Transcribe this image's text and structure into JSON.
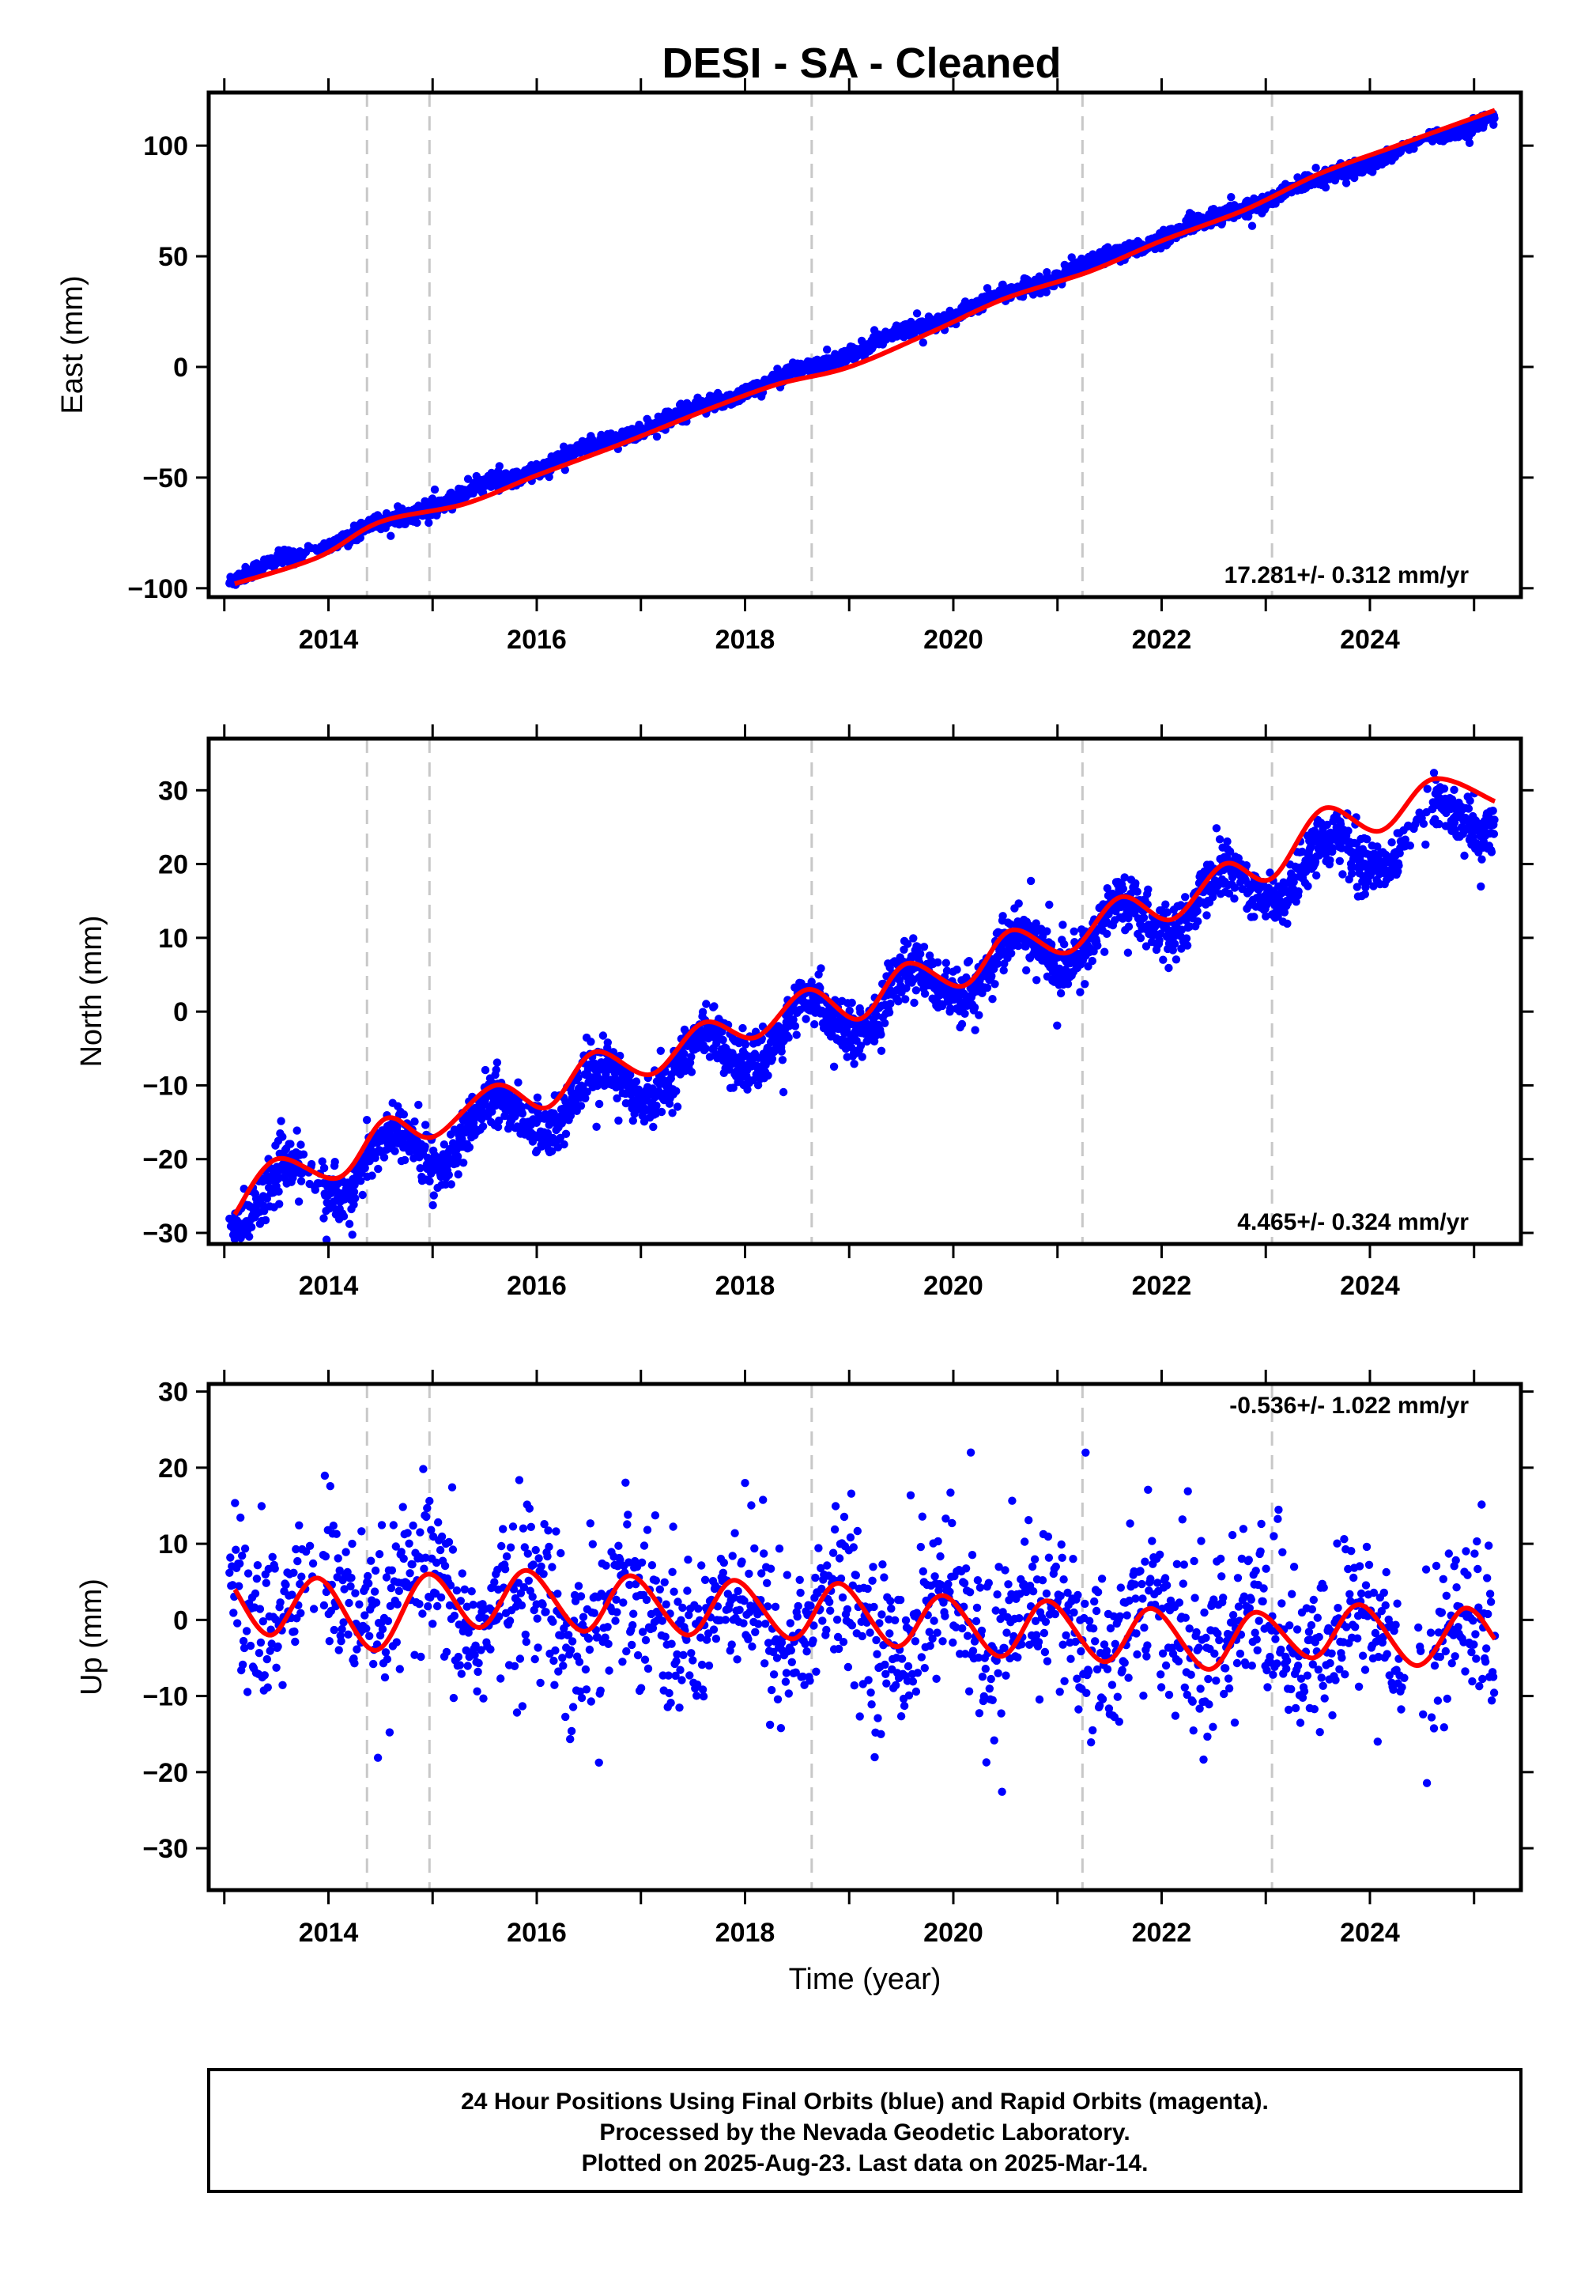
{
  "title": "DESI  - SA - Cleaned",
  "colors": {
    "points": "#0000ff",
    "fit": "#ff0000",
    "epoch_lines": "#c8c8c8",
    "frame": "#000000"
  },
  "chart_data": [
    {
      "type": "scatter",
      "panel": "east",
      "ylabel": "East (mm)",
      "xlabel": "",
      "xlim": [
        2012.85,
        2025.45
      ],
      "ylim": [
        -104,
        124
      ],
      "yticks": [
        -100,
        -50,
        0,
        50,
        100
      ],
      "ytick_labels": [
        "−100",
        "−50",
        "0",
        "50",
        "100"
      ],
      "xticks": [
        2014,
        2016,
        2018,
        2020,
        2022,
        2024
      ],
      "xtick_labels": [
        "2014",
        "2016",
        "2018",
        "2020",
        "2022",
        "2024"
      ],
      "rate_label": "17.281+/- 0.312 mm/yr",
      "data_range": [
        2013.05,
        2025.2
      ],
      "trend": {
        "value_at_2019": 6.5,
        "slope_mm_per_yr": 17.281
      },
      "fit": {
        "x": [
          2013.1,
          2013.9,
          2014.5,
          2015.3,
          2016.0,
          2016.8,
          2017.6,
          2018.3,
          2019.0,
          2019.8,
          2020.5,
          2021.3,
          2022.0,
          2022.8,
          2023.5,
          2024.2,
          2025.2
        ],
        "y": [
          -98,
          -86,
          -70,
          -62,
          -49,
          -35,
          -20,
          -8,
          0,
          16,
          31,
          43,
          57,
          71,
          87,
          99,
          116
        ]
      },
      "series": [
        {
          "values": []
        }
      ]
    },
    {
      "type": "scatter",
      "panel": "north",
      "ylabel": "North (mm)",
      "xlabel": "",
      "xlim": [
        2012.85,
        2025.45
      ],
      "ylim": [
        -31.5,
        37
      ],
      "yticks": [
        -30,
        -20,
        -10,
        0,
        10,
        20,
        30
      ],
      "ytick_labels": [
        "−30",
        "−20",
        "−10",
        "0",
        "10",
        "20",
        "30"
      ],
      "xticks": [
        2014,
        2016,
        2018,
        2020,
        2022,
        2024
      ],
      "xtick_labels": [
        "2014",
        "2016",
        "2018",
        "2020",
        "2022",
        "2024"
      ],
      "rate_label": "4.465+/- 0.324 mm/yr",
      "data_range": [
        2013.05,
        2025.2
      ],
      "trend": {
        "value_at_2019": 0.0,
        "slope_mm_per_yr": 4.465
      },
      "fit": {
        "x": [
          2013.1,
          2013.5,
          2014.1,
          2014.55,
          2015.0,
          2015.6,
          2016.1,
          2016.55,
          2017.1,
          2017.6,
          2018.1,
          2018.6,
          2019.1,
          2019.55,
          2020.1,
          2020.55,
          2021.1,
          2021.6,
          2022.1,
          2022.6,
          2023.05,
          2023.55,
          2024.1,
          2024.6,
          2025.2
        ],
        "y": [
          -27.5,
          -20,
          -22.5,
          -14.5,
          -17,
          -10,
          -13,
          -5.5,
          -8.5,
          -1.5,
          -3.5,
          3,
          -1,
          6.5,
          3.5,
          11,
          8,
          15.5,
          12.5,
          20,
          18,
          27.5,
          24.5,
          31.5,
          28.5
        ]
      },
      "series": [
        {
          "values": []
        }
      ]
    },
    {
      "type": "scatter",
      "panel": "up",
      "ylabel": "Up (mm)",
      "xlabel": "Time (year)",
      "xlim": [
        2012.85,
        2025.45
      ],
      "ylim": [
        -35.5,
        31
      ],
      "yticks": [
        -30,
        -20,
        -10,
        0,
        10,
        20,
        30
      ],
      "ytick_labels": [
        "−30",
        "−20",
        "−10",
        "0",
        "10",
        "20",
        "30"
      ],
      "xticks": [
        2014,
        2016,
        2018,
        2020,
        2022,
        2024
      ],
      "xtick_labels": [
        "2014",
        "2016",
        "2018",
        "2020",
        "2022",
        "2024"
      ],
      "rate_label": "-0.536+/- 1.022 mm/yr",
      "data_range": [
        2013.05,
        2025.2
      ],
      "trend": {
        "value_at_2019": 0.0,
        "slope_mm_per_yr": -0.536
      },
      "fit": {
        "x": [
          2013.1,
          2013.45,
          2013.9,
          2014.45,
          2014.95,
          2015.45,
          2015.9,
          2016.45,
          2016.9,
          2017.45,
          2017.9,
          2018.45,
          2018.9,
          2019.45,
          2019.9,
          2020.45,
          2020.9,
          2021.45,
          2021.9,
          2022.45,
          2022.9,
          2023.45,
          2023.9,
          2024.45,
          2024.9,
          2025.2
        ],
        "y": [
          4,
          -2,
          5.5,
          -4,
          6,
          -1,
          6.5,
          -1.5,
          5.8,
          -2,
          5.2,
          -2.5,
          4.8,
          -3.5,
          3.2,
          -4.8,
          2.5,
          -5.5,
          1.5,
          -6.5,
          1,
          -5,
          2,
          -6,
          1.5,
          -2.5
        ]
      },
      "series": [
        {
          "values": []
        }
      ]
    }
  ],
  "epoch_lines": [
    2014.37,
    2014.97,
    2018.64,
    2021.24,
    2023.06
  ],
  "footer": {
    "line1": "24 Hour Positions Using Final Orbits (blue) and Rapid Orbits (magenta).",
    "line2": "Processed by the Nevada Geodetic Laboratory.",
    "line3": "Plotted on 2025-Aug-23. Last data on 2025-Mar-14."
  }
}
